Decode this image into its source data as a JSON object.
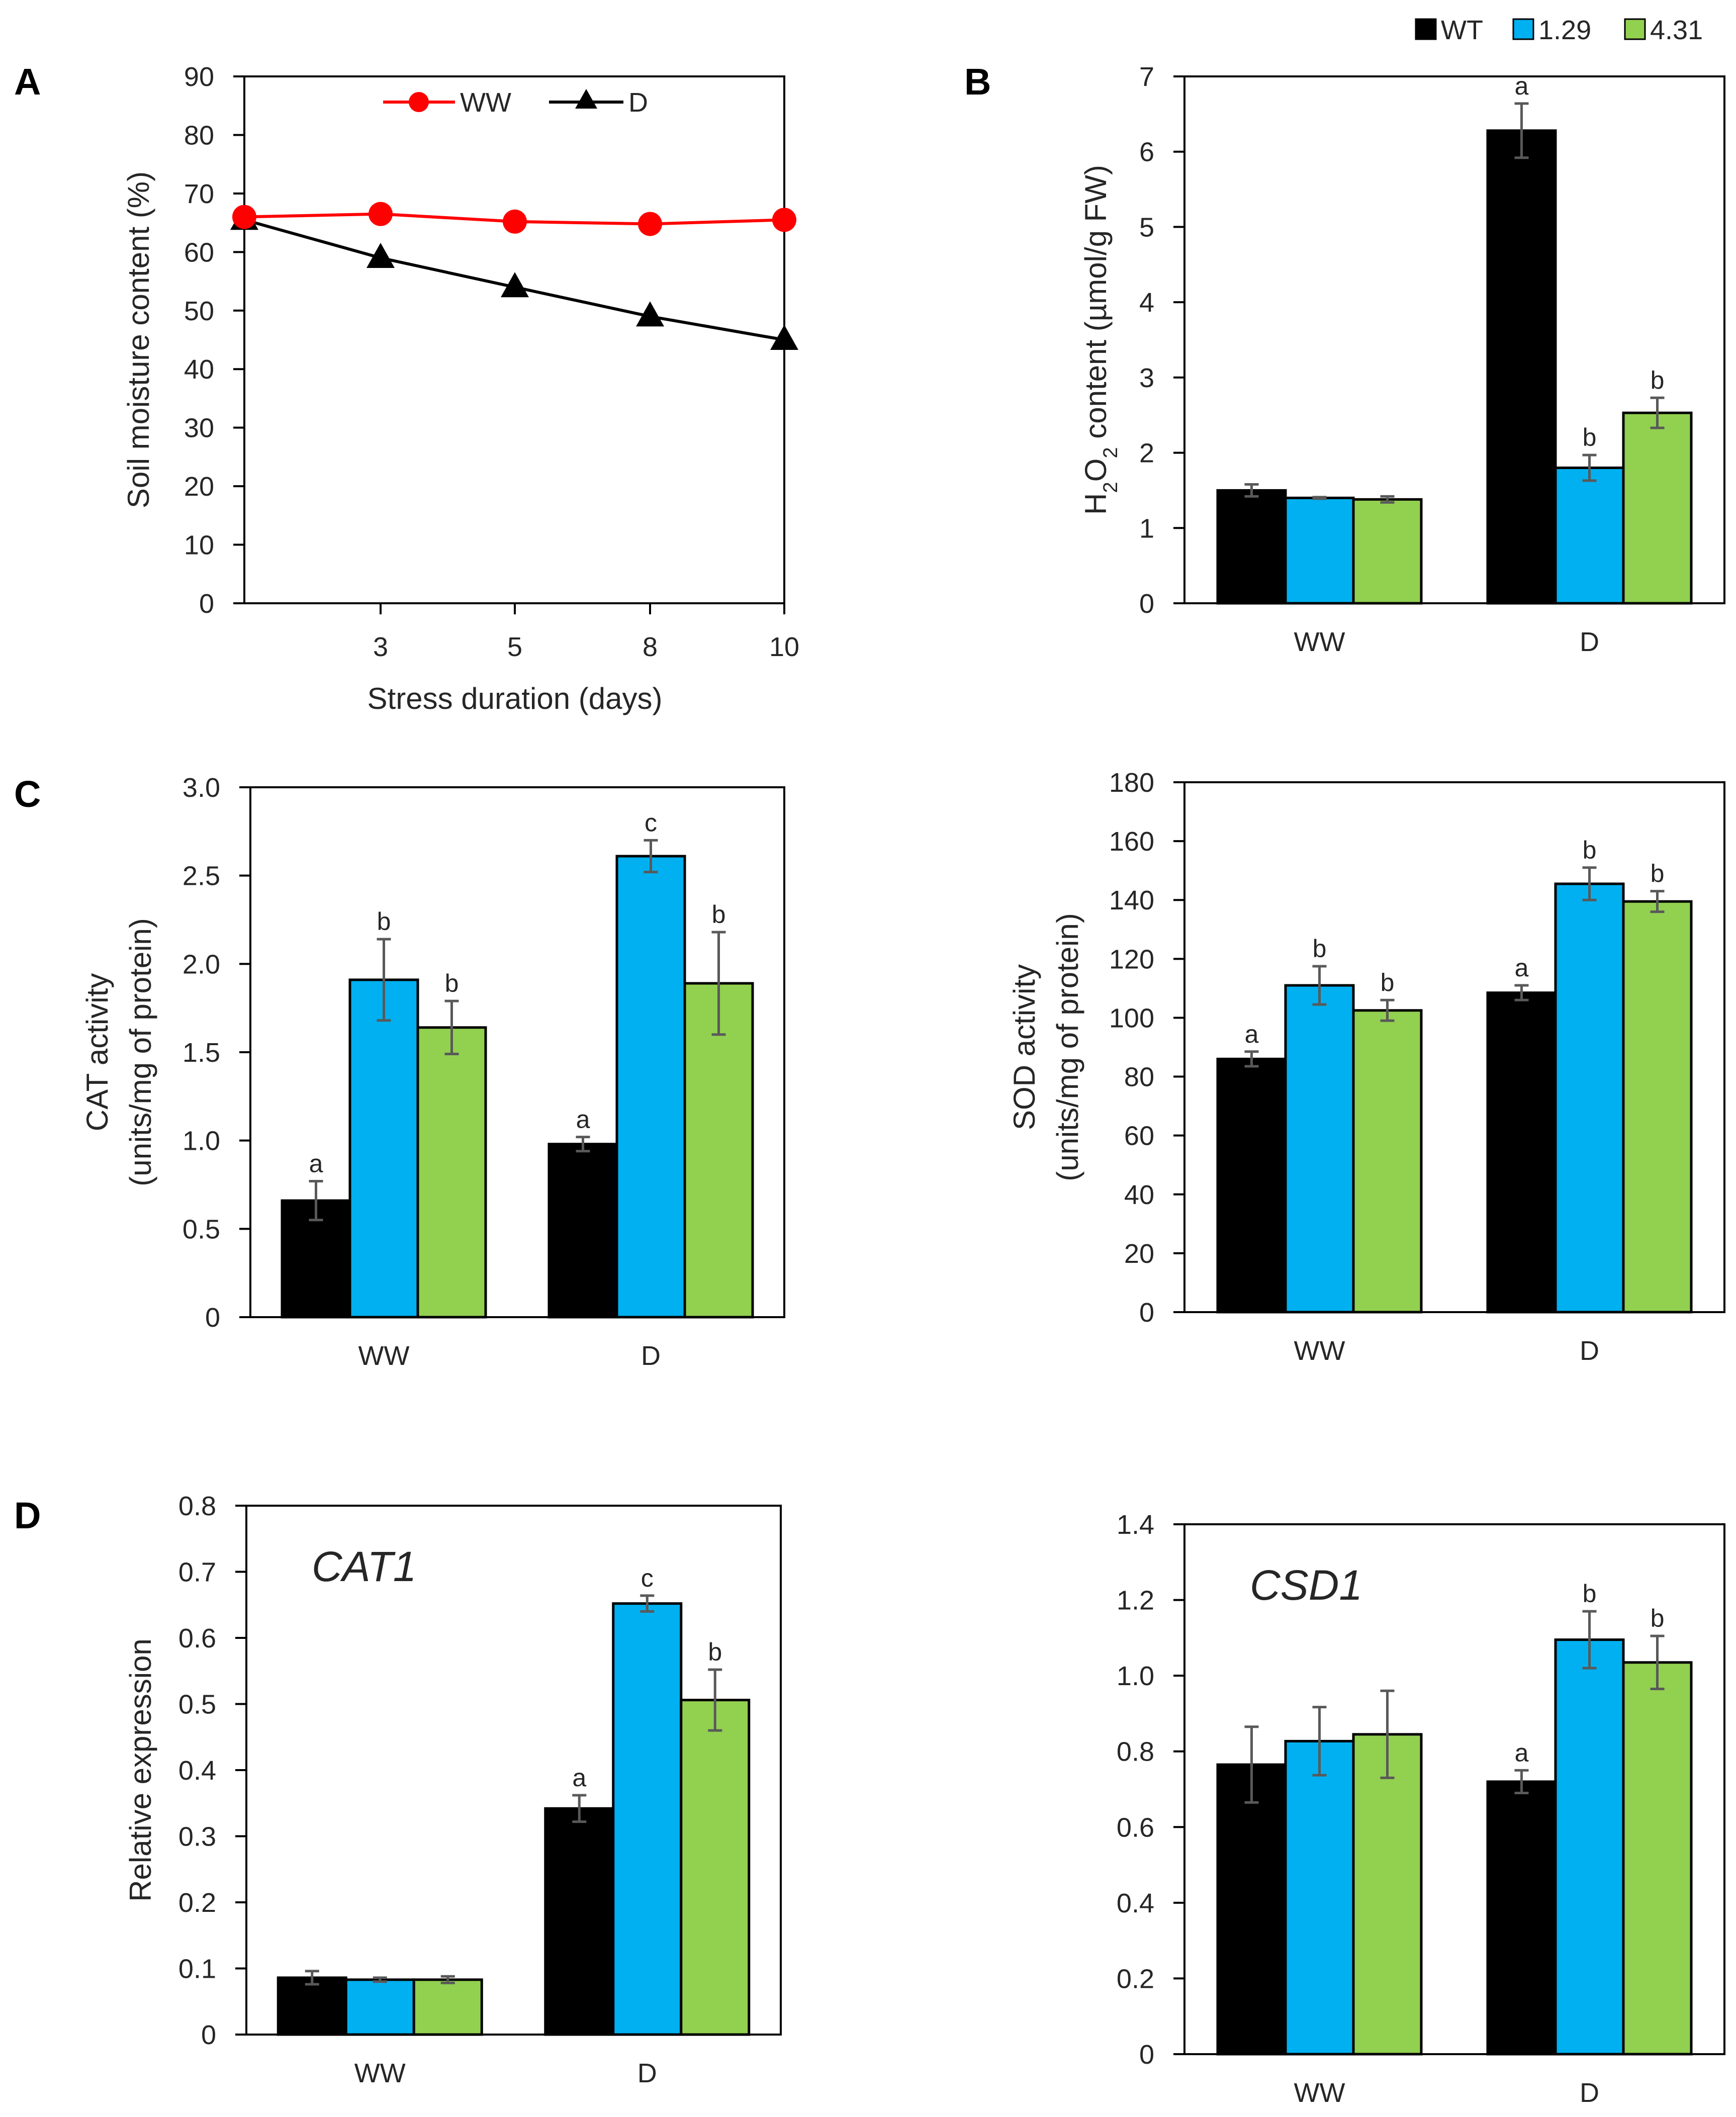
{
  "colors": {
    "WT": "#000000",
    "1.29": "#00b0f0",
    "4.31": "#92d050",
    "WW_line": "#ff0000",
    "D_line": "#000000",
    "error": "#595959"
  },
  "legend": [
    {
      "label": "WT",
      "color": "#000000"
    },
    {
      "label": "1.29",
      "color": "#00b0f0"
    },
    {
      "label": "4.31",
      "color": "#92d050"
    }
  ],
  "panel_letters": {
    "A": "A",
    "B": "B",
    "C": "C",
    "D": "D"
  },
  "chart_data": [
    {
      "id": "A",
      "type": "line",
      "xlabel": "Stress duration (days)",
      "ylabel": "Soil moisture content (%)",
      "ylim": [
        0,
        90
      ],
      "yticks": [
        "0",
        "10",
        "20",
        "30",
        "40",
        "50",
        "60",
        "70",
        "80",
        "90"
      ],
      "x_categories": [
        "",
        "3",
        "5",
        "8",
        "10"
      ],
      "legend_position": "top",
      "series": [
        {
          "name": "WW",
          "marker": "circle",
          "color": "#ff0000",
          "values": [
            66,
            66.5,
            65.2,
            64.8,
            65.5
          ]
        },
        {
          "name": "D",
          "marker": "triangle",
          "color": "#000000",
          "values": [
            65.5,
            59,
            54,
            49,
            45
          ]
        }
      ]
    },
    {
      "id": "B",
      "type": "bar",
      "ylabel": "H2O2 content (µmol/g FW)",
      "ylabel_parts": {
        "a": "H",
        "sub1": "2",
        "b": "O",
        "sub2": "2",
        "c": " content (µmol/g FW)"
      },
      "ylim": [
        0,
        7
      ],
      "yticks": [
        "0",
        "1",
        "2",
        "3",
        "4",
        "5",
        "6",
        "7"
      ],
      "categories": [
        "WW",
        "D"
      ],
      "series": [
        {
          "name": "WT",
          "values": [
            1.5,
            6.28
          ],
          "errors": [
            0.08,
            0.36
          ],
          "labels": [
            "",
            "a"
          ]
        },
        {
          "name": "1.29",
          "values": [
            1.4,
            1.8
          ],
          "errors": [
            0.01,
            0.17
          ],
          "labels": [
            "",
            "b"
          ]
        },
        {
          "name": "4.31",
          "values": [
            1.38,
            2.53
          ],
          "errors": [
            0.04,
            0.2
          ],
          "labels": [
            "",
            "b"
          ]
        }
      ]
    },
    {
      "id": "C1",
      "type": "bar",
      "ylabel_lines": [
        "CAT activity",
        "(units/mg of protein)"
      ],
      "ylim": [
        0,
        3.0
      ],
      "yticks": [
        "0",
        "0.5",
        "1.0",
        "1.5",
        "2.0",
        "2.5",
        "3.0"
      ],
      "categories": [
        "WW",
        "D"
      ],
      "series": [
        {
          "name": "WT",
          "values": [
            0.66,
            0.98
          ],
          "errors": [
            0.11,
            0.04
          ],
          "labels": [
            "a",
            "a"
          ]
        },
        {
          "name": "1.29",
          "values": [
            1.91,
            2.61
          ],
          "errors": [
            0.23,
            0.09
          ],
          "labels": [
            "b",
            "c"
          ]
        },
        {
          "name": "4.31",
          "values": [
            1.64,
            1.89
          ],
          "errors": [
            0.15,
            0.29
          ],
          "labels": [
            "b",
            "b"
          ]
        }
      ]
    },
    {
      "id": "C2",
      "type": "bar",
      "ylabel_lines": [
        "SOD activity",
        "(units/mg of protein)"
      ],
      "ylim": [
        0,
        180
      ],
      "yticks": [
        "0",
        "20",
        "40",
        "60",
        "80",
        "100",
        "120",
        "140",
        "160",
        "180"
      ],
      "categories": [
        "WW",
        "D"
      ],
      "series": [
        {
          "name": "WT",
          "values": [
            86,
            108.5
          ],
          "errors": [
            2.5,
            2.5
          ],
          "labels": [
            "a",
            "a"
          ]
        },
        {
          "name": "1.29",
          "values": [
            111,
            145.5
          ],
          "errors": [
            6.5,
            5.5
          ],
          "labels": [
            "b",
            "b"
          ]
        },
        {
          "name": "4.31",
          "values": [
            102.5,
            139.5
          ],
          "errors": [
            3.5,
            3.5
          ],
          "labels": [
            "b",
            "b"
          ]
        }
      ]
    },
    {
      "id": "D1",
      "type": "bar",
      "title": "CAT1",
      "ylabel": "Relative expression",
      "ylim": [
        0,
        0.8
      ],
      "yticks": [
        "0",
        "0.1",
        "0.2",
        "0.3",
        "0.4",
        "0.5",
        "0.6",
        "0.7",
        "0.8"
      ],
      "categories": [
        "WW",
        "D"
      ],
      "series": [
        {
          "name": "WT",
          "values": [
            0.086,
            0.342
          ],
          "errors": [
            0.01,
            0.02
          ],
          "labels": [
            "",
            "a"
          ]
        },
        {
          "name": "1.29",
          "values": [
            0.083,
            0.652
          ],
          "errors": [
            0.003,
            0.012
          ],
          "labels": [
            "",
            "c"
          ]
        },
        {
          "name": "4.31",
          "values": [
            0.083,
            0.506
          ],
          "errors": [
            0.005,
            0.046
          ],
          "labels": [
            "",
            "b"
          ]
        }
      ]
    },
    {
      "id": "D2",
      "type": "bar",
      "title": "CSD1",
      "ylim": [
        0,
        1.4
      ],
      "yticks": [
        "0",
        "0.2",
        "0.4",
        "0.6",
        "0.8",
        "1.0",
        "1.2",
        "1.4"
      ],
      "categories": [
        "WW",
        "D"
      ],
      "series": [
        {
          "name": "WT",
          "values": [
            0.765,
            0.72
          ],
          "errors": [
            0.1,
            0.03
          ],
          "labels": [
            "",
            "a"
          ]
        },
        {
          "name": "1.29",
          "values": [
            0.827,
            1.095
          ],
          "errors": [
            0.09,
            0.075
          ],
          "labels": [
            "",
            "b"
          ]
        },
        {
          "name": "4.31",
          "values": [
            0.845,
            1.035
          ],
          "errors": [
            0.115,
            0.07
          ],
          "labels": [
            "",
            "b"
          ]
        }
      ]
    }
  ]
}
